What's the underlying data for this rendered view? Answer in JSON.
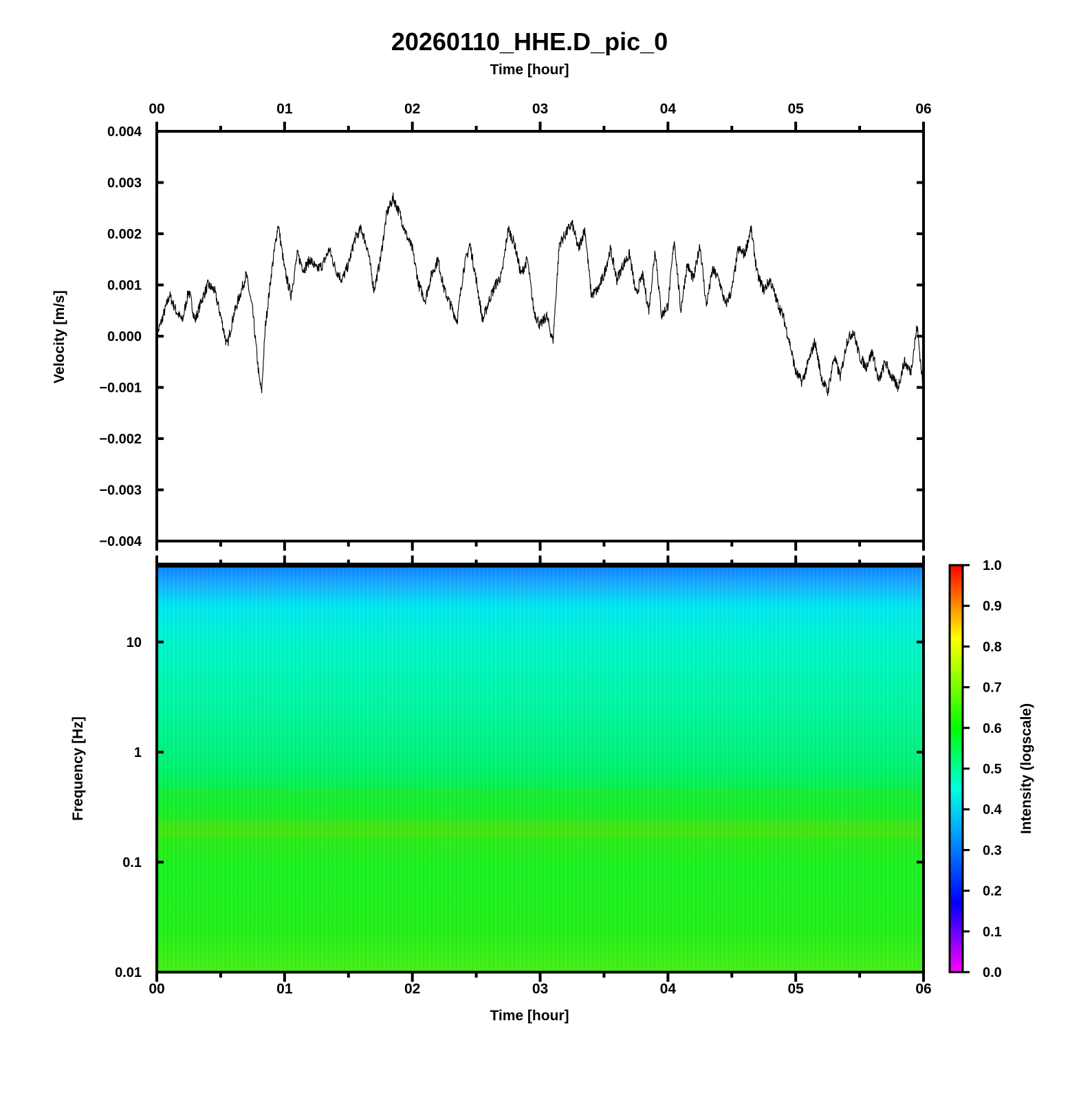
{
  "title": "20260110_HHE.D_pic_0",
  "top_axis_label": "Time [hour]",
  "bottom_axis_label": "Time [hour]",
  "chart_data": [
    {
      "type": "line",
      "title": "",
      "xlabel": "Time [hour]",
      "ylabel": "Velocity [m/s]",
      "xlim": [
        0,
        6
      ],
      "ylim": [
        -0.004,
        0.004
      ],
      "x_ticks": [
        "00",
        "01",
        "02",
        "03",
        "04",
        "05",
        "06"
      ],
      "y_ticks": [
        "0.004",
        "0.003",
        "0.002",
        "0.001",
        "0.000",
        "−0.001",
        "−0.002",
        "−0.003",
        "−0.004"
      ],
      "grid": false,
      "line_color": "#000000",
      "series": [
        {
          "x": [
            0,
            0.05,
            0.1,
            0.15,
            0.2,
            0.25,
            0.3,
            0.35,
            0.4,
            0.45,
            0.5,
            0.55,
            0.6,
            0.65,
            0.7,
            0.75,
            0.8,
            0.82,
            0.85,
            0.9,
            0.95,
            1.0,
            1.05,
            1.1,
            1.15,
            1.2,
            1.25,
            1.3,
            1.35,
            1.4,
            1.45,
            1.5,
            1.55,
            1.6,
            1.65,
            1.7,
            1.75,
            1.8,
            1.85,
            1.9,
            1.95,
            2.0,
            2.05,
            2.1,
            2.15,
            2.2,
            2.25,
            2.3,
            2.35,
            2.4,
            2.45,
            2.5,
            2.55,
            2.6,
            2.65,
            2.7,
            2.75,
            2.8,
            2.85,
            2.9,
            2.95,
            3.0,
            3.05,
            3.1,
            3.15,
            3.2,
            3.25,
            3.3,
            3.35,
            3.4,
            3.45,
            3.5,
            3.55,
            3.6,
            3.65,
            3.7,
            3.75,
            3.8,
            3.85,
            3.9,
            3.95,
            4.0,
            4.05,
            4.1,
            4.15,
            4.2,
            4.25,
            4.3,
            4.35,
            4.4,
            4.45,
            4.5,
            4.55,
            4.6,
            4.65,
            4.7,
            4.75,
            4.8,
            4.85,
            4.9,
            4.95,
            5.0,
            5.05,
            5.1,
            5.15,
            5.2,
            5.25,
            5.3,
            5.35,
            5.4,
            5.45,
            5.5,
            5.55,
            5.6,
            5.65,
            5.7,
            5.75,
            5.8,
            5.85,
            5.9,
            5.95,
            6.0
          ],
          "y": [
            0.0,
            0.0004,
            0.0008,
            0.0005,
            0.0003,
            0.0009,
            0.0003,
            0.0007,
            0.001,
            0.0009,
            0.0004,
            -0.0002,
            0.0004,
            0.0008,
            0.0012,
            0.0005,
            -0.0008,
            -0.0011,
            0.0002,
            0.0013,
            0.0022,
            0.0013,
            0.0008,
            0.0016,
            0.0013,
            0.0015,
            0.0013,
            0.0014,
            0.0017,
            0.0013,
            0.0011,
            0.0014,
            0.0019,
            0.0021,
            0.0017,
            0.0009,
            0.0015,
            0.0024,
            0.0027,
            0.0024,
            0.002,
            0.0017,
            0.001,
            0.0007,
            0.0012,
            0.0015,
            0.0009,
            0.0006,
            0.0003,
            0.0013,
            0.0018,
            0.0011,
            0.0003,
            0.0007,
            0.001,
            0.0012,
            0.0021,
            0.0018,
            0.0012,
            0.0015,
            0.0005,
            0.0002,
            0.0004,
            -0.0001,
            0.0018,
            0.002,
            0.0022,
            0.0017,
            0.0021,
            0.0008,
            0.0009,
            0.0012,
            0.0017,
            0.0011,
            0.0014,
            0.0016,
            0.0008,
            0.0012,
            0.0005,
            0.0017,
            0.0004,
            0.0006,
            0.0019,
            0.0005,
            0.0014,
            0.0011,
            0.0018,
            0.0006,
            0.0013,
            0.0011,
            0.0006,
            0.0009,
            0.0017,
            0.0016,
            0.0021,
            0.0012,
            0.0009,
            0.0011,
            0.0007,
            0.0004,
            -0.0001,
            -0.0007,
            -0.0009,
            -0.0005,
            -0.0001,
            -0.0008,
            -0.0011,
            -0.0004,
            -0.0008,
            -0.0001,
            0.0001,
            -0.0004,
            -0.0006,
            -0.0003,
            -0.0009,
            -0.0005,
            -0.0008,
            -0.001,
            -0.0005,
            -0.0007,
            0.0002,
            -0.0011
          ]
        }
      ]
    },
    {
      "type": "heatmap",
      "title": "",
      "xlabel": "Time [hour]",
      "ylabel": "Frequency [Hz]",
      "xlim": [
        0,
        6
      ],
      "y_scale": "log",
      "ylim": [
        0.01,
        50
      ],
      "x_ticks": [
        "00",
        "01",
        "02",
        "03",
        "04",
        "05",
        "06"
      ],
      "y_ticks": [
        "10",
        "1",
        "0.1",
        "0.01"
      ],
      "colorbar_label": "Intensity (logscale)",
      "colorbar_ticks": [
        "1.0",
        "0.9",
        "0.8",
        "0.7",
        "0.6",
        "0.5",
        "0.4",
        "0.3",
        "0.2",
        "0.1",
        "0.0"
      ],
      "colorbar_range": [
        0.0,
        1.0
      ],
      "colormap": [
        "#ff00ff",
        "#0000ff",
        "#00aaff",
        "#00ffff",
        "#00ff00",
        "#ffff00",
        "#ff0000"
      ],
      "intensity_profile": {
        "frequency": [
          50,
          40,
          25,
          15,
          10,
          3,
          1,
          0.5,
          0.3,
          0.2,
          0.1,
          0.03,
          0.01
        ],
        "intensity": [
          0.35,
          0.38,
          0.4,
          0.43,
          0.46,
          0.5,
          0.52,
          0.54,
          0.55,
          0.58,
          0.54,
          0.55,
          0.56
        ]
      }
    }
  ]
}
